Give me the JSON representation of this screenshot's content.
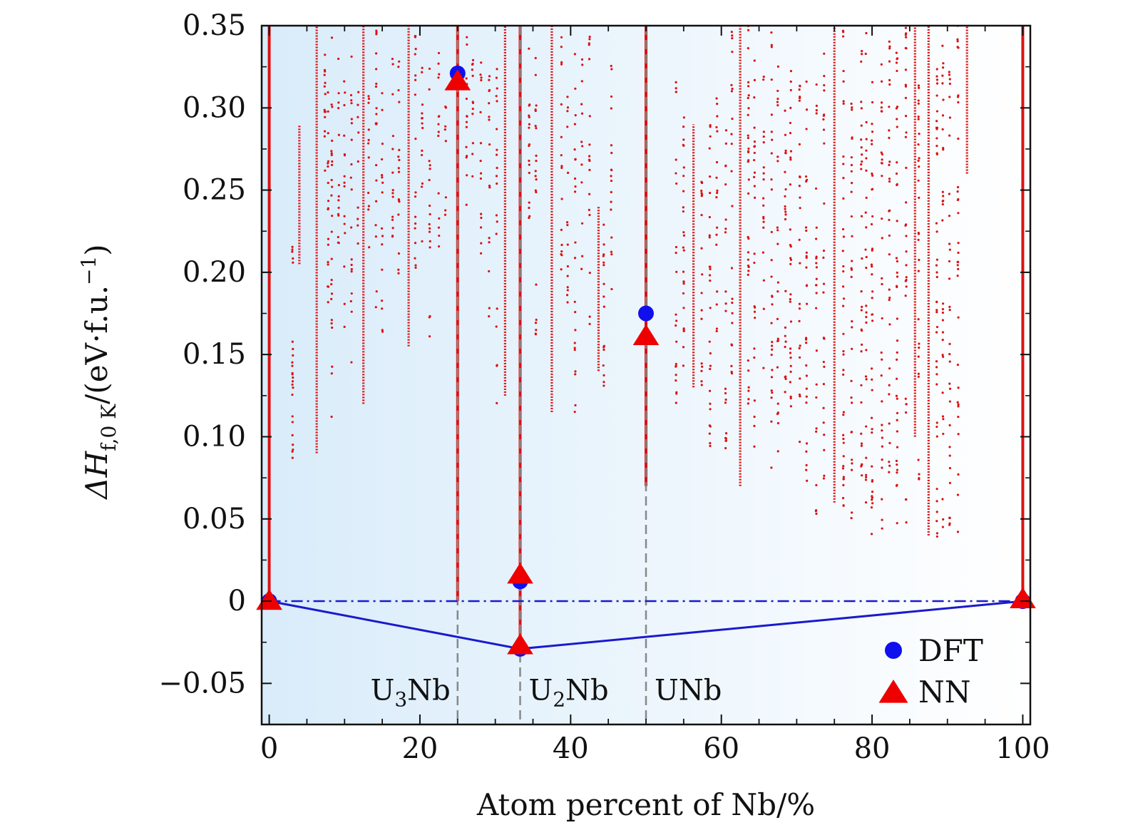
{
  "chart_data": {
    "type": "scatter",
    "xlabel": "Atom percent of Nb/%",
    "ylabel_main": "ΔH",
    "ylabel_sub": "f,0 K",
    "ylabel_units": "/(eV·f.u.",
    "ylabel_exp": "−1",
    "ylabel_close": ")",
    "xlim": [
      -1,
      101
    ],
    "ylim": [
      -0.075,
      0.35
    ],
    "x_ticks": [
      0,
      20,
      40,
      60,
      80,
      100
    ],
    "x_tick_labels": [
      "0",
      "20",
      "40",
      "60",
      "80",
      "100"
    ],
    "y_ticks": [
      -0.05,
      0,
      0.05,
      0.1,
      0.15,
      0.2,
      0.25,
      0.3,
      0.35
    ],
    "y_tick_labels": [
      "−0.05",
      "0",
      "0.05",
      "0.10",
      "0.15",
      "0.20",
      "0.25",
      "0.30",
      "0.35"
    ],
    "grid": false,
    "legend_position": "bottom-right",
    "background_gradient": [
      "#d9ecfa",
      "#ffffff"
    ],
    "colors": {
      "dft": "#1010ee",
      "nn": "#ee0000",
      "hull": "#1a1acc",
      "dashed": "#888888",
      "scatter": "#dd1111"
    },
    "series": [
      {
        "name": "DFT",
        "marker": "circle",
        "points": [
          [
            0,
            0.0
          ],
          [
            25,
            0.321
          ],
          [
            33.3,
            0.012
          ],
          [
            33.3,
            -0.029
          ],
          [
            50,
            0.175
          ],
          [
            100,
            0.0
          ]
        ]
      },
      {
        "name": "NN",
        "marker": "triangle",
        "points": [
          [
            0,
            0.0
          ],
          [
            25,
            0.316
          ],
          [
            33.3,
            0.016
          ],
          [
            33.3,
            -0.027
          ],
          [
            50,
            0.161
          ],
          [
            100,
            0.001
          ]
        ]
      }
    ],
    "convex_hull": [
      [
        0,
        0.0
      ],
      [
        33.3,
        -0.029
      ],
      [
        100,
        0.0
      ]
    ],
    "reference_line_y": 0.0,
    "phase_lines": [
      {
        "x": 25,
        "label_main": "U",
        "label_sub": "3",
        "label_rest": "Nb",
        "text_anchor": "end",
        "dx": -10
      },
      {
        "x": 33.3,
        "label_main": "U",
        "label_sub": "2",
        "label_rest": "Nb",
        "text_anchor": "start",
        "dx": 12
      },
      {
        "x": 50,
        "label_main": "UNb",
        "label_sub": "",
        "label_rest": "",
        "text_anchor": "start",
        "dx": 12
      }
    ],
    "annotation_y": -0.054,
    "scatter_columns": [
      [
        0,
        0.0,
        0.35,
        1,
        "line"
      ],
      [
        3.1,
        0.078,
        0.16,
        0.9,
        "sparse"
      ],
      [
        3.1,
        0.195,
        0.22,
        0.8,
        "sparse"
      ],
      [
        4.0,
        0.205,
        0.29,
        0.9,
        "dense"
      ],
      [
        6.3,
        0.09,
        0.35,
        1,
        "dense"
      ],
      [
        7.4,
        0.26,
        0.35,
        0.6,
        "sparse"
      ],
      [
        7.8,
        0.18,
        0.31,
        0.5,
        "sparse"
      ],
      [
        8.3,
        0.11,
        0.35,
        0.4,
        "sparse"
      ],
      [
        9.2,
        0.205,
        0.34,
        0.4,
        "sparse"
      ],
      [
        10.0,
        0.16,
        0.32,
        0.35,
        "sparse"
      ],
      [
        10.9,
        0.14,
        0.35,
        0.35,
        "sparse"
      ],
      [
        11.8,
        0.21,
        0.33,
        0.3,
        "sparse"
      ],
      [
        12.5,
        0.12,
        0.35,
        1,
        "dense"
      ],
      [
        13.2,
        0.21,
        0.33,
        0.35,
        "sparse"
      ],
      [
        14.2,
        0.17,
        0.35,
        0.4,
        "sparse"
      ],
      [
        15.0,
        0.16,
        0.31,
        0.4,
        "sparse"
      ],
      [
        16.4,
        0.22,
        0.35,
        0.4,
        "sparse"
      ],
      [
        17.2,
        0.19,
        0.34,
        0.4,
        "sparse"
      ],
      [
        18.5,
        0.155,
        0.35,
        0.9,
        "dense"
      ],
      [
        19.4,
        0.18,
        0.35,
        0.4,
        "sparse"
      ],
      [
        20.3,
        0.19,
        0.33,
        0.35,
        "sparse"
      ],
      [
        21.3,
        0.16,
        0.34,
        0.35,
        "sparse"
      ],
      [
        22.5,
        0.2,
        0.35,
        0.35,
        "sparse"
      ],
      [
        23.4,
        0.22,
        0.31,
        0.35,
        "sparse"
      ],
      [
        25.0,
        0.0,
        0.35,
        1,
        "line"
      ],
      [
        26.2,
        0.24,
        0.35,
        0.5,
        "sparse"
      ],
      [
        27.0,
        0.24,
        0.33,
        0.5,
        "sparse"
      ],
      [
        28.1,
        0.2,
        0.33,
        0.4,
        "sparse"
      ],
      [
        29.2,
        0.16,
        0.33,
        0.35,
        "sparse"
      ],
      [
        30.2,
        0.12,
        0.33,
        0.35,
        "sparse"
      ],
      [
        31.3,
        0.125,
        0.35,
        0.8,
        "dense"
      ],
      [
        33.3,
        -0.03,
        0.35,
        1,
        "line"
      ],
      [
        34.5,
        0.23,
        0.35,
        0.5,
        "sparse"
      ],
      [
        35.4,
        0.16,
        0.35,
        0.4,
        "sparse"
      ],
      [
        37.5,
        0.115,
        0.35,
        1,
        "dense"
      ],
      [
        38.8,
        0.2,
        0.35,
        0.4,
        "sparse"
      ],
      [
        39.6,
        0.16,
        0.31,
        0.35,
        "sparse"
      ],
      [
        40.6,
        0.11,
        0.35,
        0.35,
        "sparse"
      ],
      [
        41.5,
        0.2,
        0.33,
        0.35,
        "sparse"
      ],
      [
        42.5,
        0.16,
        0.35,
        0.35,
        "sparse"
      ],
      [
        43.7,
        0.14,
        0.24,
        0.9,
        "dense"
      ],
      [
        44.4,
        0.13,
        0.25,
        0.5,
        "sparse"
      ],
      [
        45.4,
        0.15,
        0.34,
        0.35,
        "sparse"
      ],
      [
        50.0,
        0.07,
        0.35,
        1,
        "line"
      ],
      [
        54.0,
        0.12,
        0.33,
        0.4,
        "sparse"
      ],
      [
        55.0,
        0.11,
        0.3,
        0.5,
        "sparse"
      ],
      [
        56.3,
        0.13,
        0.29,
        0.8,
        "dense"
      ],
      [
        57.4,
        0.12,
        0.26,
        0.5,
        "sparse"
      ],
      [
        58.5,
        0.09,
        0.3,
        0.5,
        "sparse"
      ],
      [
        59.4,
        0.13,
        0.32,
        0.35,
        "sparse"
      ],
      [
        60.6,
        0.09,
        0.3,
        0.4,
        "sparse"
      ],
      [
        61.4,
        0.11,
        0.35,
        0.35,
        "sparse"
      ],
      [
        62.5,
        0.07,
        0.35,
        1,
        "dense"
      ],
      [
        63.6,
        0.1,
        0.35,
        0.5,
        "sparse"
      ],
      [
        64.4,
        0.09,
        0.33,
        0.4,
        "sparse"
      ],
      [
        65.6,
        0.12,
        0.32,
        0.35,
        "sparse"
      ],
      [
        66.7,
        0.08,
        0.35,
        0.4,
        "sparse"
      ],
      [
        67.5,
        0.08,
        0.33,
        0.35,
        "sparse"
      ],
      [
        68.5,
        0.1,
        0.31,
        0.4,
        "sparse"
      ],
      [
        69.2,
        0.11,
        0.33,
        0.5,
        "sparse"
      ],
      [
        70.4,
        0.09,
        0.32,
        0.4,
        "sparse"
      ],
      [
        71.3,
        0.06,
        0.33,
        0.4,
        "sparse"
      ],
      [
        72.6,
        0.05,
        0.32,
        0.35,
        "sparse"
      ],
      [
        73.6,
        0.07,
        0.34,
        0.35,
        "sparse"
      ],
      [
        75.0,
        0.06,
        0.35,
        1,
        "dense"
      ],
      [
        76.2,
        0.05,
        0.35,
        0.5,
        "sparse"
      ],
      [
        77.3,
        0.05,
        0.33,
        0.4,
        "sparse"
      ],
      [
        78.6,
        0.05,
        0.34,
        0.4,
        "sparse"
      ],
      [
        79.2,
        0.06,
        0.35,
        0.35,
        "sparse"
      ],
      [
        80.0,
        0.04,
        0.33,
        0.5,
        "sparse"
      ],
      [
        81.3,
        0.04,
        0.33,
        0.4,
        "sparse"
      ],
      [
        82.3,
        0.06,
        0.35,
        0.4,
        "sparse"
      ],
      [
        83.3,
        0.045,
        0.34,
        0.5,
        "sparse"
      ],
      [
        84.5,
        0.04,
        0.35,
        0.4,
        "sparse"
      ],
      [
        85.7,
        0.1,
        0.35,
        0.6,
        "dense"
      ],
      [
        86.2,
        0.05,
        0.32,
        0.4,
        "sparse"
      ],
      [
        87.5,
        0.04,
        0.35,
        1,
        "dense"
      ],
      [
        88.6,
        0.03,
        0.33,
        0.5,
        "sparse"
      ],
      [
        89.4,
        0.04,
        0.34,
        0.4,
        "sparse"
      ],
      [
        90.3,
        0.04,
        0.33,
        0.4,
        "sparse"
      ],
      [
        91.4,
        0.04,
        0.35,
        0.4,
        "sparse"
      ],
      [
        92.6,
        0.26,
        0.35,
        0.9,
        "dense"
      ],
      [
        100.0,
        0.0,
        0.35,
        1,
        "line"
      ]
    ]
  }
}
